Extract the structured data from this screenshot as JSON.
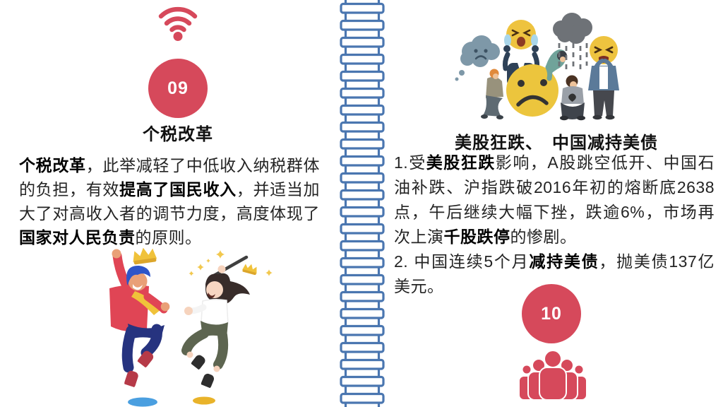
{
  "colors": {
    "accent_red": "#d6495b",
    "divider_blue": "#4a76b0",
    "body_text": "#242424",
    "title_text": "#111111"
  },
  "left_card": {
    "icon": "wifi-icon",
    "badge_number": "09",
    "title": "个税改革",
    "paragraph": [
      {
        "t": "个税改革",
        "b": true
      },
      {
        "t": "，此举减轻了中低收入纳税群体的负担，有效",
        "b": false
      },
      {
        "t": "提高了国民收入",
        "b": true
      },
      {
        "t": "，并适当加大了对高收入者的调节力度，高度体现了",
        "b": false
      },
      {
        "t": "国家对人民负责",
        "b": true
      },
      {
        "t": "的原则。",
        "b": false
      }
    ],
    "illustration": "two-people-jumping-celebration"
  },
  "right_card": {
    "illustration": "sad-and-crying-emoji-crowd",
    "title": "美股狂跌、　中国减持美债",
    "paragraphs": [
      [
        {
          "t": "1.受",
          "b": false
        },
        {
          "t": "美股狂跌",
          "b": true
        },
        {
          "t": "影响，A股跳空低开、中国石油补跌、沪指跌破2016年初的熔断底2638点，午后继续大幅下挫，跌逾6%，市场再次上演",
          "b": false
        },
        {
          "t": "千股跌停",
          "b": true
        },
        {
          "t": "的惨剧。",
          "b": false
        }
      ],
      [
        {
          "t": "2. 中国连续5个月",
          "b": false
        },
        {
          "t": "减持美债",
          "b": true
        },
        {
          "t": "，抛美债137亿美元。",
          "b": false
        }
      ]
    ],
    "badge_number": "10",
    "bottom_icon": "crowd-icon"
  }
}
